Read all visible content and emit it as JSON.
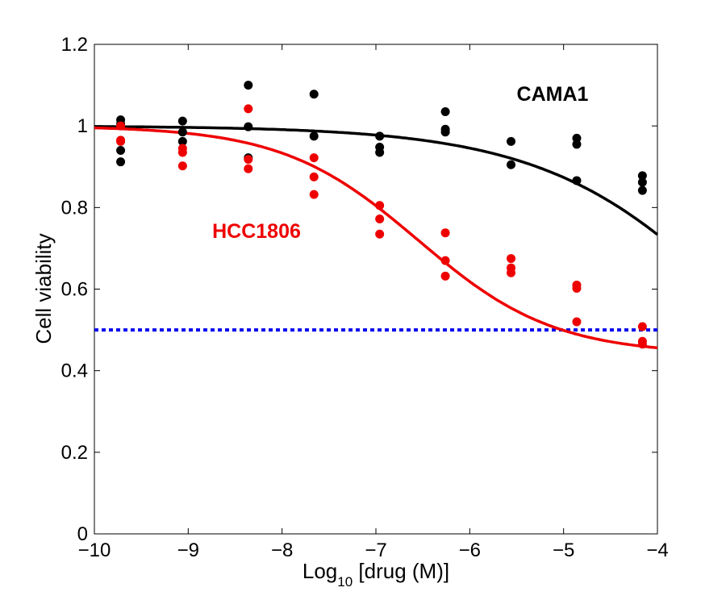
{
  "chart_data": {
    "type": "scatter",
    "title": "",
    "xlabel": {
      "prefix": "Log",
      "subscript": "10",
      "suffix": " [drug (M)]"
    },
    "ylabel": "Cell viability",
    "xlim": [
      -10,
      -4
    ],
    "ylim": [
      0,
      1.2
    ],
    "xticks": [
      -10,
      -9,
      -8,
      -7,
      -6,
      -5,
      -4
    ],
    "xtick_labels": [
      "−10",
      "−9",
      "−8",
      "−7",
      "−6",
      "−5",
      "−4"
    ],
    "yticks": [
      0,
      0.2,
      0.4,
      0.6,
      0.8,
      1,
      1.2
    ],
    "ytick_labels": [
      "0",
      "0.2",
      "0.4",
      "0.6",
      "0.8",
      "1",
      "1.2"
    ],
    "grid": false,
    "reference_line": {
      "y": 0.5,
      "color": "#0000ee",
      "style": "dotted"
    },
    "series": [
      {
        "name": "CAMA1",
        "color": "#000000",
        "points": [
          [
            -9.72,
            1.015
          ],
          [
            -9.72,
            1.005
          ],
          [
            -9.72,
            0.94
          ],
          [
            -9.72,
            0.912
          ],
          [
            -9.06,
            1.012
          ],
          [
            -9.06,
            0.985
          ],
          [
            -9.06,
            0.962
          ],
          [
            -8.36,
            1.1
          ],
          [
            -8.36,
            0.998
          ],
          [
            -8.36,
            0.922
          ],
          [
            -7.66,
            1.078
          ],
          [
            -7.66,
            0.975
          ],
          [
            -6.96,
            0.975
          ],
          [
            -6.96,
            0.948
          ],
          [
            -6.96,
            0.935
          ],
          [
            -6.26,
            1.035
          ],
          [
            -6.26,
            0.992
          ],
          [
            -6.26,
            0.985
          ],
          [
            -5.56,
            0.962
          ],
          [
            -5.56,
            0.905
          ],
          [
            -4.86,
            0.97
          ],
          [
            -4.86,
            0.955
          ],
          [
            -4.86,
            0.866
          ],
          [
            -4.16,
            0.878
          ],
          [
            -4.16,
            0.862
          ],
          [
            -4.16,
            0.842
          ]
        ],
        "fit": {
          "top": 1.0,
          "bottom": 0.0,
          "log_ic50": -2.9,
          "hill": 0.4
        }
      },
      {
        "name": "HCC1806",
        "color": "#ee0000",
        "points": [
          [
            -9.72,
            1.0
          ],
          [
            -9.72,
            0.965
          ],
          [
            -9.72,
            0.962
          ],
          [
            -9.06,
            0.945
          ],
          [
            -9.06,
            0.935
          ],
          [
            -9.06,
            0.902
          ],
          [
            -8.36,
            1.042
          ],
          [
            -8.36,
            0.918
          ],
          [
            -8.36,
            0.895
          ],
          [
            -7.66,
            0.922
          ],
          [
            -7.66,
            0.875
          ],
          [
            -7.66,
            0.832
          ],
          [
            -6.96,
            0.805
          ],
          [
            -6.96,
            0.772
          ],
          [
            -6.96,
            0.735
          ],
          [
            -6.26,
            0.738
          ],
          [
            -6.26,
            0.67
          ],
          [
            -6.26,
            0.632
          ],
          [
            -5.56,
            0.675
          ],
          [
            -5.56,
            0.652
          ],
          [
            -5.56,
            0.64
          ],
          [
            -4.86,
            0.61
          ],
          [
            -4.86,
            0.602
          ],
          [
            -4.86,
            0.52
          ],
          [
            -4.16,
            0.508
          ],
          [
            -4.16,
            0.472
          ],
          [
            -4.16,
            0.465
          ]
        ],
        "fit": {
          "top": 1.0,
          "bottom": 0.44,
          "log_ic50": -6.55,
          "hill": 0.6
        }
      }
    ]
  }
}
